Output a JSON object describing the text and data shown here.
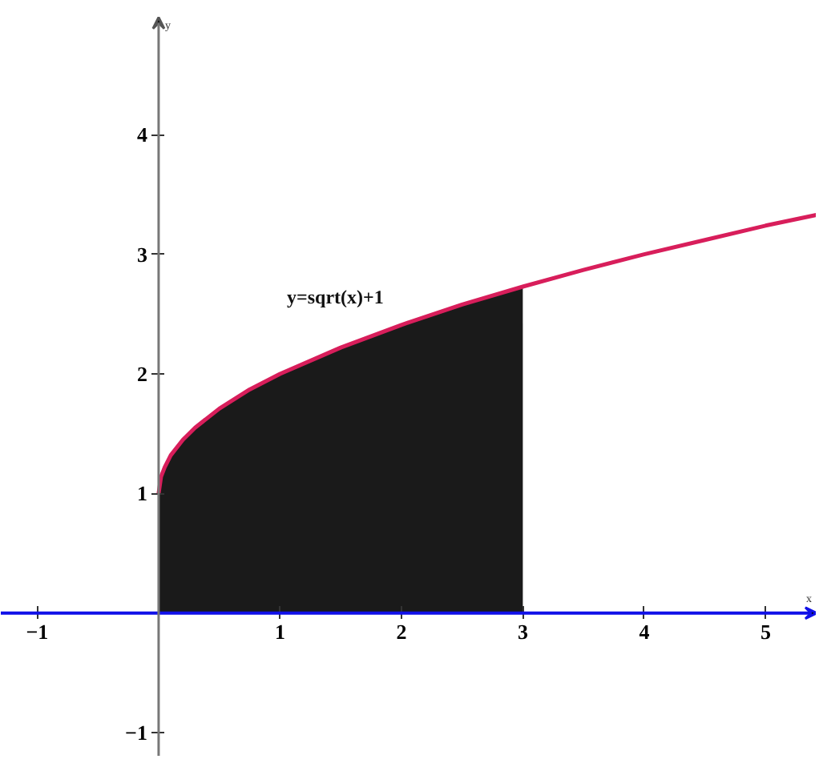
{
  "chart_data": {
    "type": "line",
    "xlabel": "x",
    "ylabel": "y",
    "xlim": [
      -1.3,
      5.42
    ],
    "ylim": [
      -1.2,
      5.12
    ],
    "xticks": [
      -1,
      1,
      2,
      3,
      4,
      5
    ],
    "yticks": [
      -1,
      1,
      2,
      3,
      4
    ],
    "series": [
      {
        "type": "area",
        "color": "#1a1a1a",
        "x": [
          0,
          0.02,
          0.05,
          0.1,
          0.2,
          0.3,
          0.5,
          0.75,
          1,
          1.5,
          2,
          2.5,
          3
        ],
        "values": [
          1,
          1.14,
          1.22,
          1.32,
          1.45,
          1.55,
          1.71,
          1.87,
          2,
          2.22,
          2.41,
          2.58,
          2.73
        ]
      },
      {
        "name": "y=sqrt(x)+1",
        "color": "#d81e5b",
        "x": [
          0,
          0.02,
          0.05,
          0.1,
          0.2,
          0.3,
          0.5,
          0.75,
          1,
          1.5,
          2,
          2.5,
          3,
          3.5,
          4,
          4.5,
          5,
          5.42
        ],
        "values": [
          1,
          1.14,
          1.22,
          1.32,
          1.45,
          1.55,
          1.71,
          1.87,
          2,
          2.22,
          2.41,
          2.58,
          2.73,
          2.87,
          3,
          3.12,
          3.24,
          3.33
        ]
      }
    ]
  }
}
